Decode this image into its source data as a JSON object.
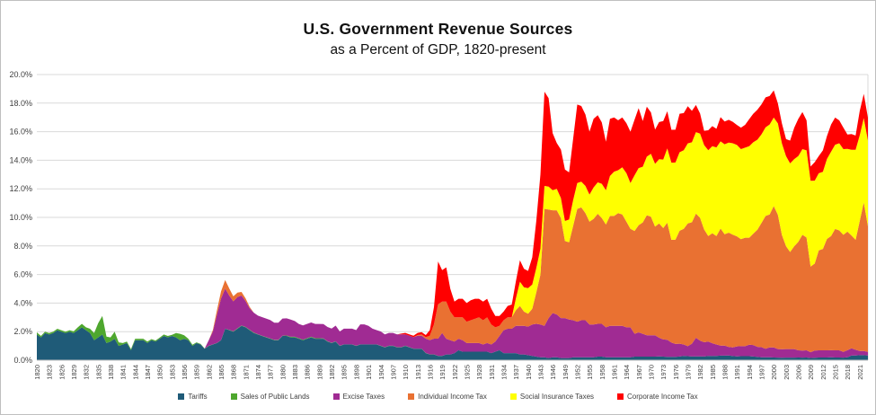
{
  "chart_data": {
    "type": "area",
    "stacked": true,
    "title": "U.S. Government Revenue Sources",
    "subtitle": "as a Percent of GDP, 1820-present",
    "xlabel": "",
    "ylabel": "",
    "ylim": [
      0,
      20
    ],
    "y_ticks": [
      "0.0%",
      "2.0%",
      "4.0%",
      "6.0%",
      "8.0%",
      "10.0%",
      "12.0%",
      "14.0%",
      "16.0%",
      "18.0%",
      "20.0%"
    ],
    "x_start": 1820,
    "x_end": 2023,
    "x_ticks": [
      1820,
      1823,
      1826,
      1829,
      1832,
      1835,
      1838,
      1841,
      1844,
      1847,
      1850,
      1853,
      1856,
      1859,
      1862,
      1865,
      1868,
      1871,
      1874,
      1877,
      1880,
      1883,
      1886,
      1889,
      1892,
      1895,
      1898,
      1901,
      1904,
      1907,
      1910,
      1913,
      1916,
      1919,
      1922,
      1925,
      1928,
      1931,
      1934,
      1937,
      1940,
      1943,
      1946,
      1949,
      1952,
      1955,
      1958,
      1961,
      1964,
      1967,
      1970,
      1973,
      1976,
      1979,
      1982,
      1985,
      1988,
      1991,
      1994,
      1997,
      2000,
      2003,
      2006,
      2009,
      2012,
      2015,
      2018,
      2021
    ],
    "grid": "horizontal",
    "legend_position": "bottom",
    "colors": {
      "gridline": "#D9D9D9",
      "axis_text": "#404040",
      "axis_line": "#BFBFBF",
      "background": "#FFFFFF"
    },
    "series": [
      {
        "name": "Tariffs",
        "color": "#1F5B78",
        "start_year": 1820,
        "values": [
          1.8,
          1.6,
          1.9,
          1.8,
          1.9,
          2.1,
          2.0,
          1.9,
          2.0,
          1.9,
          2.1,
          2.3,
          2.1,
          1.9,
          1.4,
          1.6,
          1.8,
          1.2,
          1.3,
          1.5,
          1.0,
          1.1,
          1.2,
          0.7,
          1.4,
          1.4,
          1.4,
          1.2,
          1.4,
          1.3,
          1.5,
          1.7,
          1.6,
          1.7,
          1.6,
          1.4,
          1.5,
          1.4,
          1.0,
          1.2,
          1.1,
          0.8,
          1.0,
          1.1,
          1.2,
          1.4,
          2.2,
          2.1,
          2.0,
          2.2,
          2.4,
          2.3,
          2.1,
          1.9,
          1.8,
          1.7,
          1.6,
          1.5,
          1.4,
          1.4,
          1.7,
          1.7,
          1.6,
          1.6,
          1.5,
          1.4,
          1.5,
          1.6,
          1.5,
          1.5,
          1.5,
          1.3,
          1.2,
          1.3,
          1.0,
          1.1,
          1.1,
          1.1,
          1.0,
          1.1,
          1.1,
          1.1,
          1.1,
          1.1,
          1.0,
          0.9,
          1.0,
          1.0,
          0.9,
          0.9,
          1.0,
          0.9,
          0.8,
          0.8,
          0.8,
          0.5,
          0.4,
          0.4,
          0.3,
          0.3,
          0.4,
          0.4,
          0.5,
          0.7,
          0.6,
          0.6,
          0.6,
          0.6,
          0.6,
          0.6,
          0.6,
          0.5,
          0.6,
          0.7,
          0.5,
          0.5,
          0.5,
          0.5,
          0.4,
          0.4,
          0.35,
          0.3,
          0.25,
          0.2,
          0.2,
          0.15,
          0.2,
          0.2,
          0.15,
          0.15,
          0.15,
          0.2,
          0.2,
          0.2,
          0.2,
          0.2,
          0.2,
          0.25,
          0.25,
          0.2,
          0.2,
          0.2,
          0.2,
          0.2,
          0.2,
          0.2,
          0.25,
          0.25,
          0.25,
          0.25,
          0.25,
          0.25,
          0.27,
          0.25,
          0.23,
          0.23,
          0.24,
          0.26,
          0.3,
          0.28,
          0.26,
          0.27,
          0.27,
          0.26,
          0.3,
          0.29,
          0.3,
          0.32,
          0.32,
          0.33,
          0.29,
          0.27,
          0.28,
          0.28,
          0.28,
          0.26,
          0.24,
          0.21,
          0.2,
          0.2,
          0.19,
          0.18,
          0.17,
          0.18,
          0.18,
          0.18,
          0.19,
          0.18,
          0.19,
          0.16,
          0.17,
          0.19,
          0.19,
          0.19,
          0.2,
          0.19,
          0.19,
          0.18,
          0.2,
          0.33,
          0.33,
          0.35,
          0.35,
          0.33
        ]
      },
      {
        "name": "Sales of Public Lands",
        "color": "#4EA72E",
        "start_year": 1820,
        "values": [
          0.15,
          0.1,
          0.1,
          0.1,
          0.1,
          0.1,
          0.1,
          0.1,
          0.1,
          0.12,
          0.2,
          0.25,
          0.2,
          0.3,
          0.5,
          1.0,
          1.3,
          0.45,
          0.3,
          0.5,
          0.25,
          0.1,
          0.1,
          0.08,
          0.1,
          0.1,
          0.1,
          0.1,
          0.08,
          0.08,
          0.08,
          0.1,
          0.1,
          0.08,
          0.3,
          0.45,
          0.25,
          0.1,
          0.08,
          0.05,
          0.04,
          0.02,
          0.01,
          0.01,
          0.01,
          0.01,
          0.01,
          0.02,
          0.02,
          0.03,
          0.03,
          0.03,
          0.03,
          0.03,
          0.02,
          0.02,
          0.02,
          0.02,
          0.02,
          0.02,
          0.02,
          0.03,
          0.04,
          0.04,
          0.04,
          0.04,
          0.04,
          0.04,
          0.04,
          0.04,
          0.03,
          0.03,
          0.02,
          0.02,
          0.01,
          0.01,
          0.01,
          0.01,
          0.01,
          0.01,
          0.01,
          0.01,
          0.01,
          0.01,
          0.01,
          0.01,
          0.01,
          0.01,
          0.01,
          0.01,
          0.01,
          0.01,
          0.01,
          0.01,
          0.01,
          0.01,
          0.01,
          0.01,
          0.01,
          0.01
        ]
      },
      {
        "name": "Excise Taxes",
        "color": "#A02B93",
        "start_year": 1862,
        "values": [
          0.4,
          0.9,
          2.0,
          2.9,
          2.8,
          2.4,
          2.1,
          2.2,
          2.1,
          1.8,
          1.5,
          1.4,
          1.3,
          1.3,
          1.3,
          1.3,
          1.2,
          1.2,
          1.2,
          1.2,
          1.2,
          1.1,
          1.0,
          1.0,
          1.0,
          1.0,
          1.0,
          1.0,
          1.0,
          1.0,
          1.0,
          1.1,
          1.0,
          1.1,
          1.1,
          1.1,
          1.1,
          1.4,
          1.4,
          1.3,
          1.1,
          1.0,
          1.0,
          0.9,
          0.9,
          0.9,
          0.9,
          0.9,
          0.8,
          0.8,
          0.8,
          0.9,
          0.9,
          1.0,
          1.0,
          1.1,
          1.2,
          1.6,
          1.1,
          1.0,
          0.8,
          0.8,
          0.8,
          0.6,
          0.6,
          0.6,
          0.6,
          0.5,
          0.6,
          0.6,
          0.7,
          1.0,
          1.6,
          1.7,
          1.7,
          1.9,
          2.0,
          2.0,
          2.0,
          2.2,
          2.3,
          2.3,
          2.2,
          2.8,
          3.1,
          3.0,
          2.8,
          2.8,
          2.7,
          2.6,
          2.5,
          2.6,
          2.6,
          2.3,
          2.3,
          2.3,
          2.3,
          2.1,
          2.2,
          2.2,
          2.2,
          2.2,
          2.1,
          2.1,
          1.6,
          1.7,
          1.6,
          1.5,
          1.5,
          1.5,
          1.3,
          1.2,
          1.2,
          1.0,
          0.9,
          0.9,
          0.8,
          0.7,
          0.9,
          1.3,
          1.1,
          1.0,
          1.0,
          0.9,
          0.8,
          0.7,
          0.7,
          0.6,
          0.6,
          0.7,
          0.7,
          0.7,
          0.8,
          0.8,
          0.7,
          0.7,
          0.6,
          0.7,
          0.7,
          0.6,
          0.6,
          0.6,
          0.6,
          0.6,
          0.5,
          0.5,
          0.5,
          0.4,
          0.5,
          0.5,
          0.5,
          0.5,
          0.5,
          0.5,
          0.5,
          0.4,
          0.5,
          0.5,
          0.4,
          0.3,
          0.3,
          0.25
        ]
      },
      {
        "name": "Individual Income Tax",
        "color": "#E97132",
        "start_year": 1863,
        "values": [
          0.1,
          0.3,
          0.5,
          0.6,
          0.5,
          0.35,
          0.3,
          0.25,
          0.2,
          0.1,
          0,
          0,
          0,
          0,
          0,
          0,
          0,
          0,
          0,
          0,
          0,
          0,
          0,
          0,
          0,
          0,
          0,
          0,
          0,
          0,
          0,
          0,
          0,
          0,
          0,
          0,
          0,
          0,
          0,
          0,
          0,
          0,
          0,
          0,
          0,
          0,
          0,
          0,
          0,
          0,
          0.05,
          0.1,
          0.1,
          0.3,
          1.0,
          2.4,
          2.2,
          2.6,
          2.0,
          1.7,
          1.5,
          1.6,
          1.5,
          1.6,
          1.7,
          1.8,
          1.7,
          1.8,
          1.4,
          1.0,
          0.7,
          0.7,
          0.8,
          0.8,
          1.1,
          1.4,
          1.0,
          0.9,
          1.1,
          2.2,
          3.5,
          8.2,
          7.6,
          7.2,
          7.3,
          7.0,
          5.4,
          5.4,
          6.6,
          7.9,
          7.9,
          7.5,
          7.2,
          7.4,
          7.7,
          7.4,
          7.2,
          7.7,
          7.7,
          7.9,
          7.8,
          7.4,
          6.9,
          7.2,
          7.5,
          7.8,
          8.4,
          8.3,
          7.6,
          8.0,
          7.8,
          8.2,
          7.2,
          7.3,
          7.9,
          8.1,
          8.6,
          8.5,
          8.7,
          8.6,
          7.9,
          7.4,
          7.7,
          7.6,
          8.2,
          7.8,
          8.0,
          7.9,
          7.7,
          7.5,
          7.6,
          7.5,
          7.8,
          8.2,
          8.7,
          9.3,
          9.3,
          9.9,
          9.4,
          8.0,
          7.2,
          6.8,
          7.2,
          7.6,
          8.1,
          7.9,
          6.0,
          6.1,
          7.0,
          7.1,
          7.8,
          8.0,
          8.5,
          8.4,
          8.2,
          8.3,
          7.9,
          7.7,
          9.1,
          10.4,
          8.8
        ]
      },
      {
        "name": "Social Insurance Taxes",
        "color": "#FFFF00",
        "start_year": 1937,
        "values": [
          0.8,
          1.7,
          1.7,
          1.8,
          1.7,
          1.7,
          1.8,
          1.6,
          1.6,
          1.4,
          1.5,
          1.4,
          1.4,
          1.6,
          1.8,
          1.8,
          1.8,
          1.9,
          1.9,
          2.2,
          2.2,
          2.4,
          2.4,
          2.8,
          3.1,
          3.0,
          3.3,
          3.4,
          3.2,
          3.9,
          4.0,
          3.9,
          4.1,
          4.4,
          4.4,
          4.5,
          4.8,
          5.2,
          5.4,
          5.4,
          5.5,
          5.5,
          5.6,
          5.6,
          5.7,
          5.9,
          5.9,
          6.0,
          6.1,
          6.2,
          6.1,
          6.3,
          6.3,
          6.4,
          6.4,
          6.3,
          6.3,
          6.4,
          6.4,
          6.3,
          6.2,
          6.2,
          6.3,
          6.2,
          6.4,
          6.4,
          6.3,
          6.2,
          6.1,
          6.0,
          6.0,
          6.1,
          6.0,
          5.8,
          5.4,
          5.4,
          5.6,
          5.9,
          5.9,
          6.1,
          6.0,
          5.8,
          6.0,
          6.3,
          6.0,
          5.9,
          6.0
        ]
      },
      {
        "name": "Corporate Income Tax",
        "color": "#FF0000",
        "start_year": 1909,
        "values": [
          0.05,
          0.1,
          0.1,
          0.1,
          0.15,
          0.15,
          0.15,
          0.4,
          1.2,
          3.0,
          2.2,
          2.4,
          1.6,
          1.1,
          1.3,
          1.3,
          1.3,
          1.4,
          1.4,
          1.3,
          1.3,
          1.3,
          1.1,
          0.8,
          0.7,
          0.6,
          0.8,
          0.9,
          1.2,
          1.5,
          1.3,
          1.2,
          1.9,
          3.3,
          5.2,
          6.6,
          6.2,
          4.0,
          3.2,
          3.4,
          3.6,
          3.3,
          4.3,
          5.5,
          5.3,
          5.0,
          4.4,
          4.8,
          4.7,
          4.3,
          3.4,
          4.0,
          3.8,
          3.5,
          3.5,
          3.5,
          3.6,
          3.9,
          4.2,
          3.2,
          3.5,
          2.9,
          2.4,
          2.6,
          2.7,
          2.6,
          2.3,
          2.3,
          2.7,
          2.6,
          2.6,
          2.2,
          1.9,
          1.4,
          1.0,
          1.4,
          1.4,
          1.3,
          1.7,
          1.6,
          1.6,
          1.5,
          1.4,
          1.5,
          1.6,
          1.9,
          2.0,
          2.1,
          2.1,
          2.1,
          2.0,
          1.9,
          1.4,
          1.4,
          1.2,
          1.6,
          2.2,
          2.6,
          2.6,
          2.1,
          1.0,
          1.3,
          1.2,
          1.5,
          1.6,
          1.9,
          1.9,
          1.6,
          1.5,
          1.0,
          1.1,
          1.0,
          1.7,
          1.7,
          1.6
        ]
      }
    ]
  }
}
